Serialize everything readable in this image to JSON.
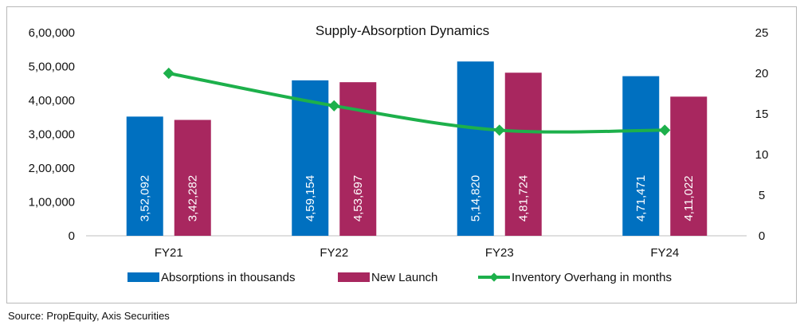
{
  "chart_data": {
    "type": "bar",
    "title": "Supply-Absorption Dynamics",
    "categories": [
      "FY21",
      "FY22",
      "FY23",
      "FY24"
    ],
    "series": [
      {
        "name": "Absorptions in thousands",
        "kind": "bar",
        "axis": "left",
        "color": "#0070C0",
        "values": [
          352092,
          459154,
          514820,
          471471
        ],
        "labels": [
          "3,52,092",
          "4,59,154",
          "5,14,820",
          "4,71,471"
        ]
      },
      {
        "name": "New Launch",
        "kind": "bar",
        "axis": "left",
        "color": "#A8275F",
        "values": [
          342282,
          453697,
          481724,
          411022
        ],
        "labels": [
          "3,42,282",
          "4,53,697",
          "4,81,724",
          "4,11,022"
        ]
      },
      {
        "name": "Inventory Overhang in months",
        "kind": "line",
        "axis": "right",
        "color": "#1DB04B",
        "values": [
          20,
          16,
          13,
          13
        ]
      }
    ],
    "y_left": {
      "ylim": [
        0,
        600000
      ],
      "ticks": [
        "0",
        "1,00,000",
        "2,00,000",
        "3,00,000",
        "4,00,000",
        "5,00,000",
        "6,00,000"
      ]
    },
    "y_right": {
      "ylim": [
        0,
        25
      ],
      "ticks": [
        "0",
        "5",
        "10",
        "15",
        "20",
        "25"
      ]
    },
    "grid": false,
    "legend": "bottom"
  },
  "source": "Source: PropEquity, Axis Securities"
}
